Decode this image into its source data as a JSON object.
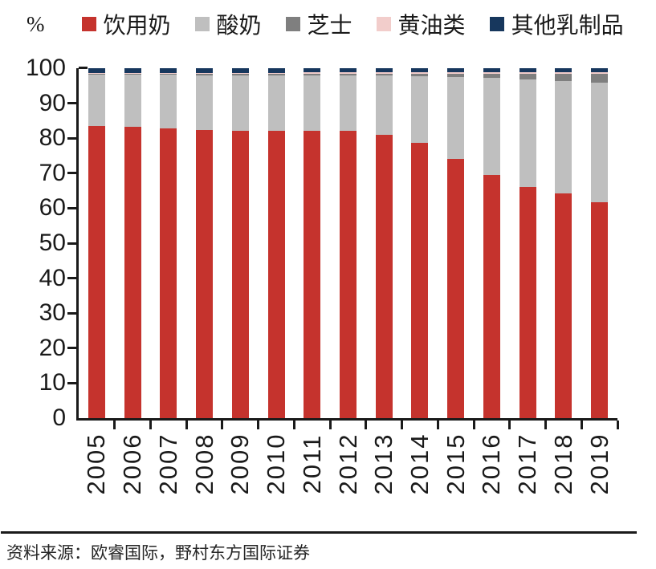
{
  "chart_data": {
    "type": "bar",
    "stacked": true,
    "title": "",
    "unit": "%",
    "ylabel": "%",
    "xlabel": "",
    "grid": false,
    "legend_position": "top",
    "ylim": [
      0,
      100
    ],
    "yticks": [
      0,
      10,
      20,
      30,
      40,
      50,
      60,
      70,
      80,
      90,
      100
    ],
    "categories": [
      "2005",
      "2006",
      "2007",
      "2008",
      "2009",
      "2010",
      "2011",
      "2012",
      "2013",
      "2014",
      "2015",
      "2016",
      "2017",
      "2018",
      "2019"
    ],
    "series": [
      {
        "name": "饮用奶",
        "color": "#c5332d",
        "values": [
          83.5,
          83.2,
          82.8,
          82.3,
          82.2,
          82.2,
          82.2,
          82.0,
          81.0,
          78.7,
          74.0,
          69.5,
          66.0,
          64.2,
          61.8
        ]
      },
      {
        "name": "酸奶",
        "color": "#bfbfbf",
        "values": [
          14.6,
          14.9,
          15.3,
          15.7,
          15.8,
          15.8,
          15.8,
          16.0,
          16.9,
          19.0,
          23.4,
          27.7,
          30.8,
          32.1,
          34.0
        ]
      },
      {
        "name": "芝士",
        "color": "#7f7f7f",
        "values": [
          0.3,
          0.3,
          0.3,
          0.4,
          0.4,
          0.4,
          0.5,
          0.5,
          0.6,
          0.8,
          1.0,
          1.2,
          1.6,
          2.0,
          2.5
        ]
      },
      {
        "name": "黄油类",
        "color": "#f2cdcb",
        "values": [
          0.3,
          0.3,
          0.3,
          0.3,
          0.3,
          0.3,
          0.3,
          0.3,
          0.3,
          0.3,
          0.4,
          0.4,
          0.4,
          0.5,
          0.5
        ]
      },
      {
        "name": "其他乳制品",
        "color": "#17375d",
        "values": [
          1.3,
          1.3,
          1.3,
          1.3,
          1.3,
          1.3,
          1.2,
          1.2,
          1.2,
          1.2,
          1.2,
          1.2,
          1.2,
          1.2,
          1.2
        ]
      }
    ],
    "colors": {
      "axis": "#1a1a1a",
      "text": "#1a1a1a"
    }
  },
  "footer": {
    "source_text": "资料来源：欧睿国际，野村东方国际证券"
  }
}
